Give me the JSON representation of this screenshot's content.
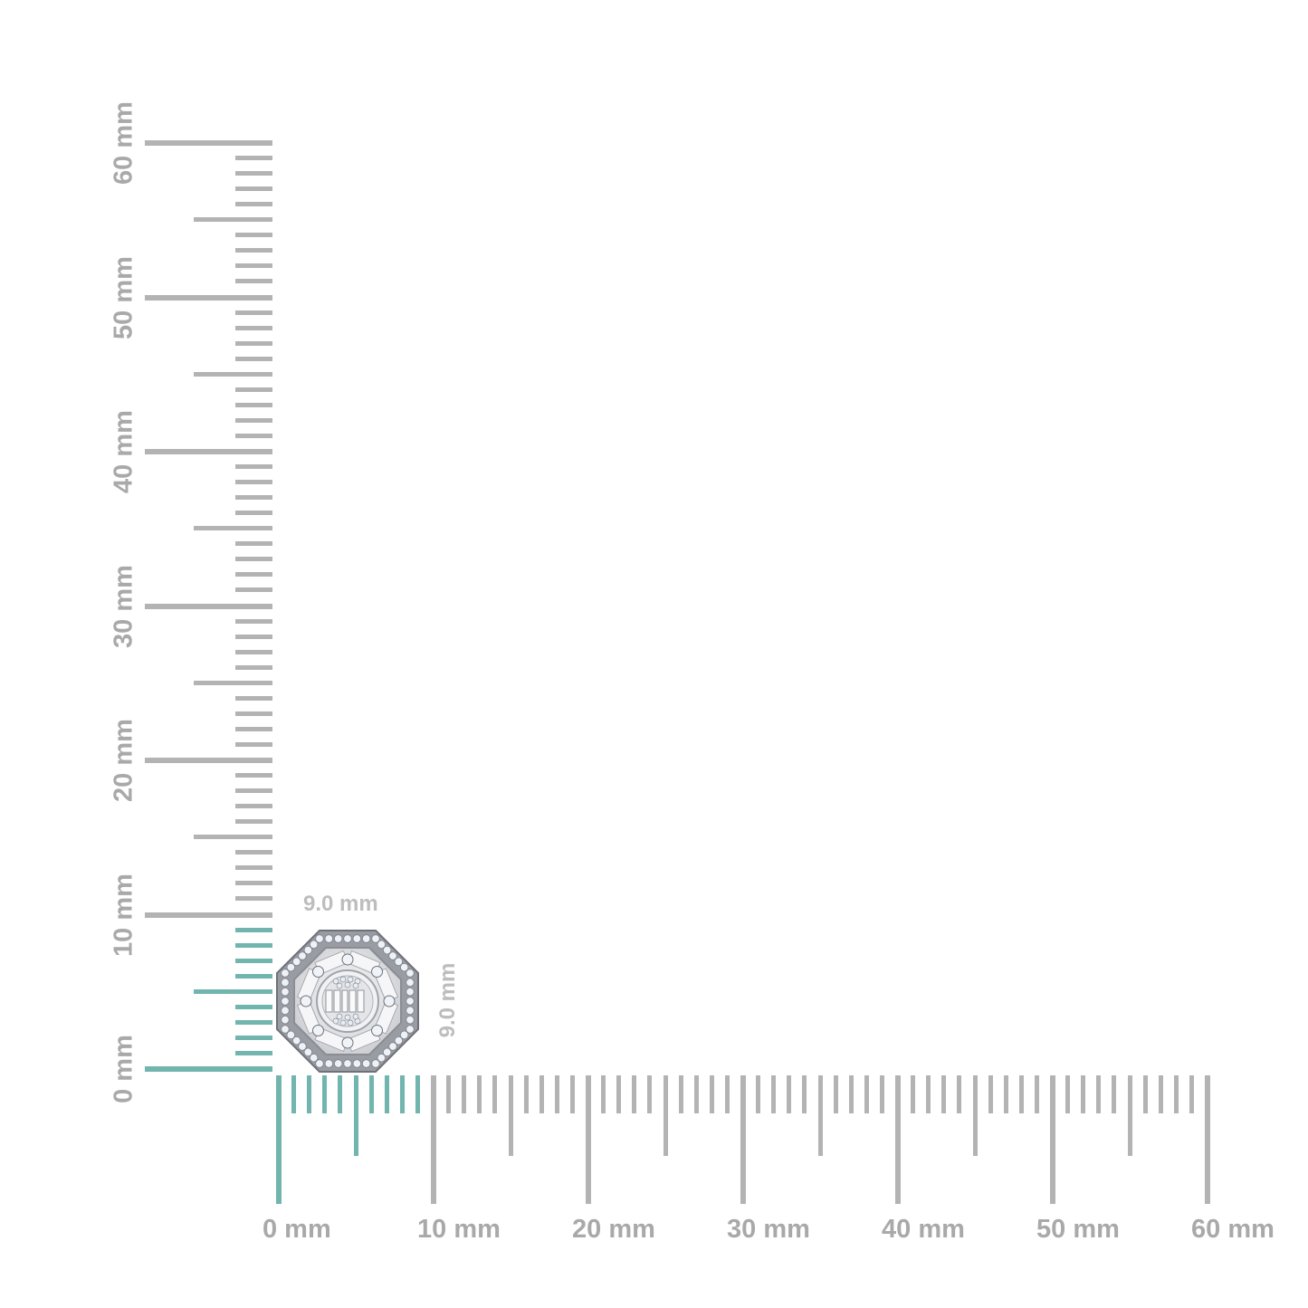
{
  "units": "mm",
  "ruler": {
    "min": 0,
    "max": 60,
    "major_step": 10,
    "half_step": 5,
    "minor_step": 1,
    "horizontal_labels": [
      "0 mm",
      "10 mm",
      "20 mm",
      "30 mm",
      "40 mm",
      "50 mm",
      "60 mm"
    ],
    "vertical_labels": [
      "0 mm",
      "10 mm",
      "20 mm",
      "30 mm",
      "40 mm",
      "50 mm",
      "60 mm"
    ],
    "highlight_to": 9
  },
  "product": {
    "width_label": "9.0 mm",
    "height_label": "9.0 mm",
    "width_mm": 9.0,
    "height_mm": 9.0,
    "shape": "octagon halo earring with baguette and round diamonds"
  },
  "colors": {
    "tick": "#b3b3b3",
    "highlight": "#72b5ae",
    "label": "#a9a9a9",
    "metal": "#e6e6e8"
  }
}
